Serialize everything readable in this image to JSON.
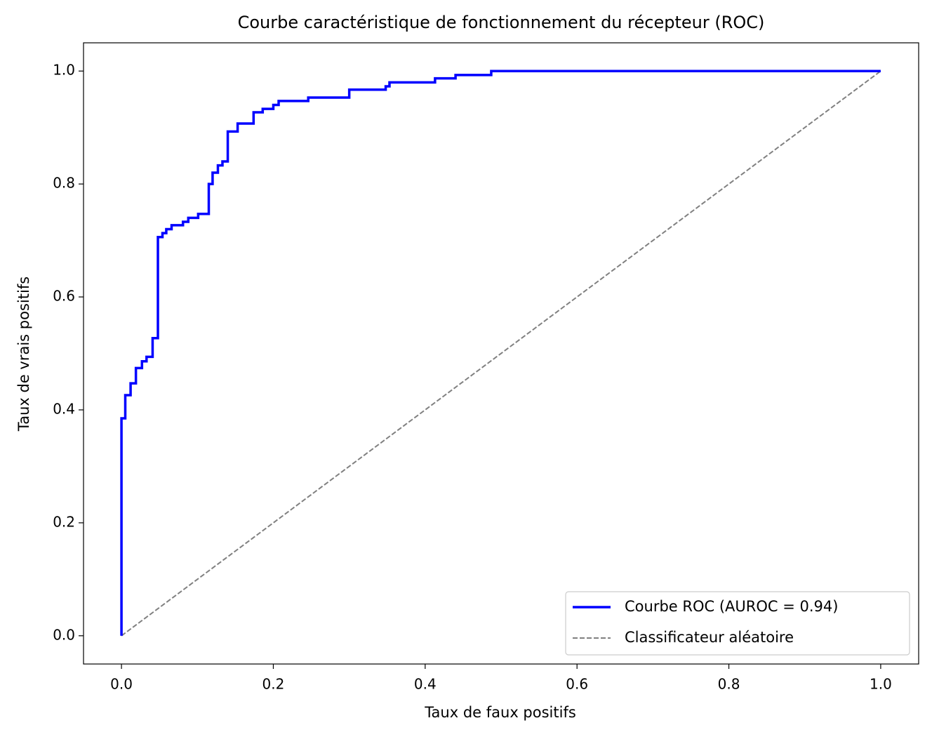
{
  "chart_data": {
    "type": "line",
    "title": "Courbe caractéristique de fonctionnement du récepteur (ROC)",
    "xlabel": "Taux de faux positifs",
    "ylabel": "Taux de vrais positifs",
    "xlim": [
      -0.05,
      1.05
    ],
    "ylim": [
      -0.05,
      1.05
    ],
    "xticks": [
      {
        "value": 0,
        "label": "0.0"
      },
      0.2,
      0.4,
      0.6,
      0.8,
      {
        "value": 1,
        "label": "1.0"
      }
    ],
    "yticks": [
      {
        "value": 0,
        "label": "0.0"
      },
      0.2,
      0.4,
      0.6,
      0.8,
      {
        "value": 1,
        "label": "1.0"
      }
    ],
    "legend": "lower right",
    "series": [
      {
        "name": "Courbe ROC (AUROC = 0.94)",
        "color": "#0000ff",
        "linestyle": "solid",
        "x": [
          0,
          0,
          0.005,
          0.005,
          0.012,
          0.012,
          0.019,
          0.019,
          0.027,
          0.027,
          0.033,
          0.033,
          0.041,
          0.041,
          0.048,
          0.048,
          0.054,
          0.054,
          0.059,
          0.059,
          0.066,
          0.066,
          0.081,
          0.081,
          0.088,
          0.088,
          0.101,
          0.101,
          0.115,
          0.115,
          0.12,
          0.12,
          0.127,
          0.127,
          0.133,
          0.133,
          0.14,
          0.14,
          0.153,
          0.153,
          0.174,
          0.174,
          0.186,
          0.186,
          0.2,
          0.2,
          0.207,
          0.207,
          0.246,
          0.246,
          0.3,
          0.3,
          0.348,
          0.348,
          0.353,
          0.353,
          0.413,
          0.413,
          0.44,
          0.44,
          0.487,
          0.487,
          1
        ],
        "values": [
          0,
          0.385,
          0.385,
          0.426,
          0.426,
          0.447,
          0.447,
          0.474,
          0.474,
          0.486,
          0.486,
          0.494,
          0.494,
          0.527,
          0.527,
          0.706,
          0.706,
          0.713,
          0.713,
          0.72,
          0.72,
          0.727,
          0.727,
          0.733,
          0.733,
          0.74,
          0.74,
          0.747,
          0.747,
          0.8,
          0.8,
          0.82,
          0.82,
          0.833,
          0.833,
          0.84,
          0.84,
          0.893,
          0.893,
          0.907,
          0.907,
          0.927,
          0.927,
          0.933,
          0.933,
          0.94,
          0.94,
          0.947,
          0.947,
          0.953,
          0.953,
          0.967,
          0.967,
          0.973,
          0.973,
          0.98,
          0.98,
          0.987,
          0.987,
          0.993,
          0.993,
          1,
          1
        ]
      },
      {
        "name": "Classificateur aléatoire",
        "color": "#808080",
        "linestyle": "dashed",
        "x": [
          0,
          1
        ],
        "values": [
          0,
          1
        ]
      }
    ]
  }
}
